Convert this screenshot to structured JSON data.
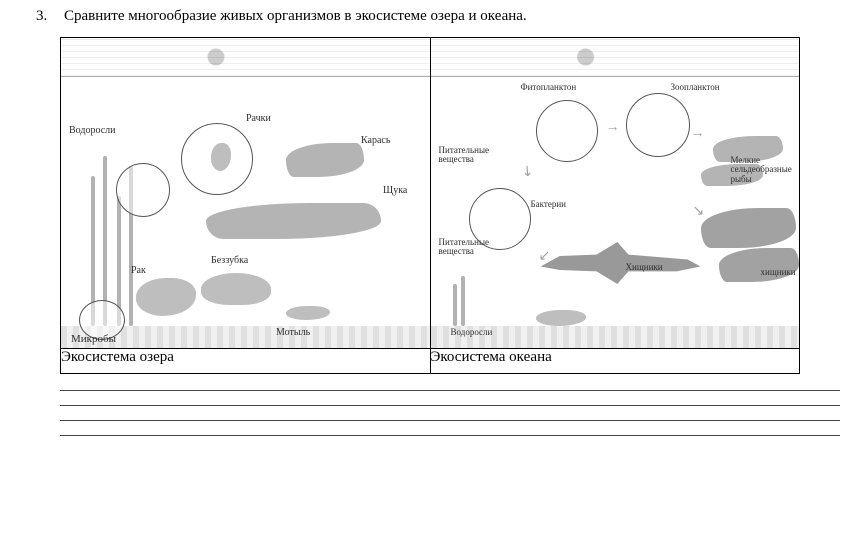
{
  "question": {
    "number": "3.",
    "text": "Сравните многообразие живых организмов в экосистеме озера и океана."
  },
  "lake": {
    "caption": "Экосистема озера",
    "labels": {
      "algae": "Водоросли",
      "daphnia": "Рачки",
      "carp": "Карась",
      "pike": "Щука",
      "mussel": "Беззубка",
      "crayfish": "Рак",
      "microbes": "Микробы",
      "bloodworm": "Мотыль"
    }
  },
  "ocean": {
    "caption": "Экосистема океана",
    "labels": {
      "phyto": "Фитопланктон",
      "zoo": "Зоопланктон",
      "nutrients1": "Питательные\nвещества",
      "nutrients2": "Питательные\nвещества",
      "bacteria": "Бактерии",
      "smallfish": "Мелкие\nсельдеобразные\nрыбы",
      "predator1": "Хищники",
      "predator2": "хищники",
      "seaweed": "Водоросли"
    }
  },
  "answer_line_count": 4
}
